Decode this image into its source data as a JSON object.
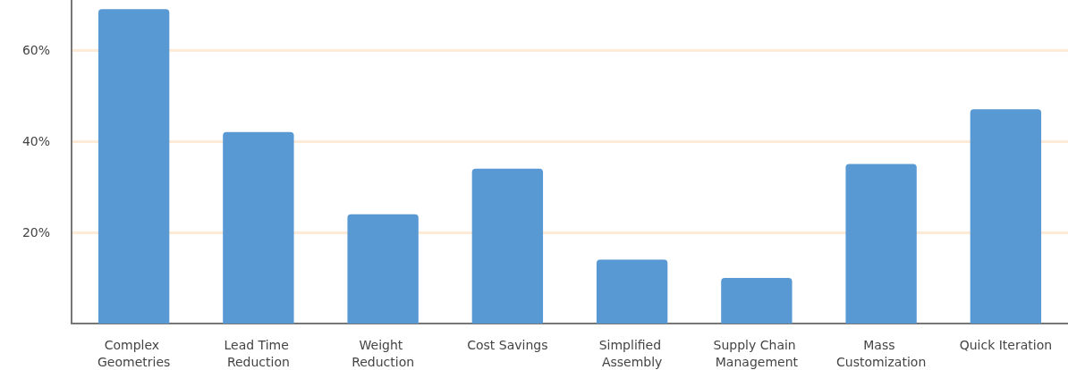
{
  "chart_data": {
    "type": "bar",
    "categories": [
      "Complex Geometries",
      "Lead Time Reduction",
      "Weight Reduction",
      "Cost Savings",
      "Simplified Assembly",
      "Supply Chain Management",
      "Mass Customization",
      "Quick Iteration"
    ],
    "values": [
      69,
      42,
      24,
      34,
      14,
      10,
      35,
      47
    ],
    "color": "#5899d4",
    "ylim": [
      0,
      71
    ],
    "yticks": [
      {
        "value": 20,
        "label": "20%"
      },
      {
        "value": 40,
        "label": "40%"
      },
      {
        "value": 60,
        "label": "60%"
      }
    ],
    "grid": "y"
  }
}
